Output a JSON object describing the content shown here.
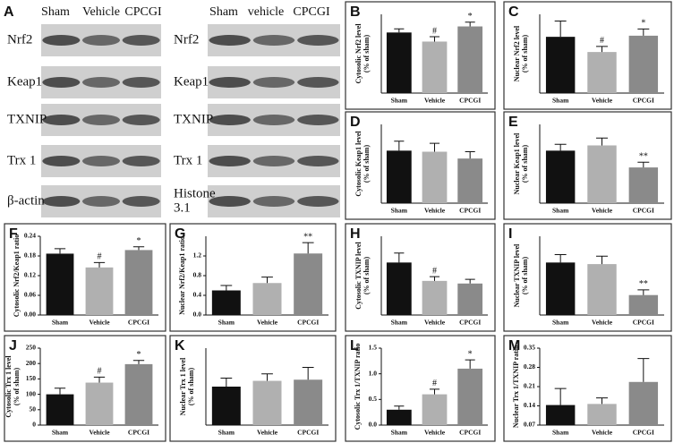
{
  "blots": [
    {
      "label": "A",
      "lanes": [
        "Sham",
        "Vehicle",
        "CPCGI"
      ],
      "rows": [
        [
          "Nrf2"
        ],
        [
          "Keap1"
        ],
        [
          "TXNIP"
        ],
        [
          "Trx 1"
        ],
        [
          "β-actin"
        ]
      ]
    },
    {
      "lanes": [
        "Sham",
        "vehicle",
        "CPCGI"
      ],
      "rows": [
        [
          "Nrf2"
        ],
        [
          "Keap1"
        ],
        [
          "TXNIP"
        ],
        [
          "Trx 1"
        ],
        [
          "Histone",
          "3.1"
        ]
      ]
    }
  ],
  "chart_data": [
    {
      "type": "bar",
      "label": "B",
      "ylabel": [
        "Cytosolic Nrf2 level",
        "(% of sham)"
      ],
      "categories": [
        "Sham",
        "Vehicle",
        "CPCGI"
      ],
      "values": [
        100,
        85,
        110
      ],
      "errors": [
        6,
        8,
        7
      ],
      "annotations": [
        null,
        "#",
        "*"
      ],
      "colors": [
        "#111111",
        "#b0b0b0",
        "#8a8a8a"
      ],
      "ylim": [
        0,
        130
      ]
    },
    {
      "type": "bar",
      "label": "C",
      "ylabel": [
        "Nuclear Nrf2 level",
        "(% of sham)"
      ],
      "categories": [
        "Sham",
        "Vehicle",
        "CPCGI"
      ],
      "values": [
        100,
        73,
        102
      ],
      "errors": [
        28,
        10,
        12
      ],
      "annotations": [
        null,
        "#",
        "*"
      ],
      "colors": [
        "#111111",
        "#b0b0b0",
        "#8a8a8a"
      ],
      "ylim": [
        0,
        140
      ]
    },
    {
      "type": "bar",
      "label": "D",
      "ylabel": [
        "Cytosolic Keap1 level",
        "(% of sham)"
      ],
      "categories": [
        "Sham",
        "Vehicle",
        "CPCGI"
      ],
      "values": [
        100,
        98,
        85
      ],
      "errors": [
        18,
        16,
        13
      ],
      "colors": [
        "#111111",
        "#b0b0b0",
        "#8a8a8a"
      ],
      "ylim": [
        0,
        150
      ]
    },
    {
      "type": "bar",
      "label": "E",
      "ylabel": [
        "Nuclear Keap1 level",
        "(% of sham)"
      ],
      "categories": [
        "Sham",
        "Vehicle",
        "CPCGI"
      ],
      "values": [
        100,
        110,
        68
      ],
      "errors": [
        12,
        14,
        10
      ],
      "annotations": [
        null,
        null,
        "**"
      ],
      "colors": [
        "#111111",
        "#b0b0b0",
        "#8a8a8a"
      ],
      "ylim": [
        0,
        150
      ]
    },
    {
      "type": "bar",
      "label": "F",
      "ylabel": [
        "Cytosolic Nrf2/Keap1 ratio"
      ],
      "categories": [
        "Sham",
        "Vehicle",
        "CPCGI"
      ],
      "values": [
        0.187,
        0.145,
        0.198
      ],
      "errors": [
        0.015,
        0.015,
        0.01
      ],
      "annotations": [
        null,
        "#",
        "*"
      ],
      "colors": [
        "#111111",
        "#b0b0b0",
        "#8a8a8a"
      ],
      "ylim": [
        0,
        0.24
      ],
      "yticks": [
        {
          "value": 0,
          "label": "0.00"
        },
        0.06,
        0.12,
        0.18,
        0.24
      ]
    },
    {
      "type": "bar",
      "label": "G",
      "ylabel": [
        "Nuclear Nrf2/Keap1 ratio"
      ],
      "categories": [
        "Sham",
        "Vehicle",
        "CPCGI"
      ],
      "values": [
        0.5,
        0.65,
        1.25
      ],
      "errors": [
        0.1,
        0.12,
        0.22
      ],
      "annotations": [
        null,
        null,
        "**"
      ],
      "colors": [
        "#111111",
        "#b0b0b0",
        "#8a8a8a"
      ],
      "ylim": [
        0,
        1.6
      ],
      "yticks": [
        {
          "value": 0,
          "label": "0.0"
        },
        0.4,
        0.8,
        1.2
      ]
    },
    {
      "type": "bar",
      "label": "H",
      "ylabel": [
        "Cytosolic TXNIP level",
        "(% of sham)"
      ],
      "categories": [
        "Sham",
        "Vehicle",
        "CPCGI"
      ],
      "values": [
        100,
        65,
        60
      ],
      "errors": [
        18,
        8,
        8
      ],
      "annotations": [
        null,
        "#",
        null
      ],
      "colors": [
        "#111111",
        "#b0b0b0",
        "#8a8a8a"
      ],
      "ylim": [
        0,
        150
      ]
    },
    {
      "type": "bar",
      "label": "I",
      "ylabel": [
        "Nuclear TXNIP level",
        "(% of sham)"
      ],
      "categories": [
        "Sham",
        "Vehicle",
        "CPCGI"
      ],
      "values": [
        100,
        97,
        38
      ],
      "errors": [
        15,
        15,
        10
      ],
      "annotations": [
        null,
        null,
        "**"
      ],
      "colors": [
        "#111111",
        "#b0b0b0",
        "#8a8a8a"
      ],
      "ylim": [
        0,
        150
      ]
    },
    {
      "type": "bar",
      "label": "J",
      "ylabel": [
        "Cytosolic Trx 1 level",
        "(% of sham)"
      ],
      "categories": [
        "Sham",
        "Vehicle",
        "CPCGI"
      ],
      "values": [
        100,
        138,
        198
      ],
      "errors": [
        20,
        18,
        12
      ],
      "annotations": [
        null,
        "#",
        "*"
      ],
      "colors": [
        "#111111",
        "#b0b0b0",
        "#8a8a8a"
      ],
      "ylim": [
        0,
        250
      ],
      "yticks": [
        0,
        50,
        100,
        150,
        200,
        250
      ]
    },
    {
      "type": "bar",
      "label": "K",
      "ylabel": [
        "Nuclear Trx 1 level",
        "(% of sham)"
      ],
      "categories": [
        "Sham",
        "Vehicle",
        "CPCGI"
      ],
      "values": [
        100,
        115,
        118
      ],
      "errors": [
        22,
        18,
        32
      ],
      "colors": [
        "#111111",
        "#b0b0b0",
        "#8a8a8a"
      ],
      "ylim": [
        0,
        200
      ]
    },
    {
      "type": "bar",
      "label": "L",
      "ylabel": [
        "Cytosolic Trx 1/TXNIP ratio"
      ],
      "categories": [
        "Sham",
        "Vehicle",
        "CPCGI"
      ],
      "values": [
        0.3,
        0.6,
        1.1
      ],
      "errors": [
        0.07,
        0.1,
        0.17
      ],
      "annotations": [
        null,
        "#",
        "*"
      ],
      "colors": [
        "#111111",
        "#b0b0b0",
        "#8a8a8a"
      ],
      "ylim": [
        0,
        1.5
      ],
      "yticks": [
        {
          "value": 0,
          "label": "0.0"
        },
        0.5,
        {
          "value": 1,
          "label": "1.0"
        },
        1.5
      ]
    },
    {
      "type": "bar",
      "label": "M",
      "ylabel": [
        "Nuclear Trx 1/TXNIP ratio"
      ],
      "categories": [
        "Sham",
        "Vehicle",
        "CPCGI"
      ],
      "values": [
        0.143,
        0.147,
        0.227
      ],
      "errors": [
        0.06,
        0.022,
        0.085
      ],
      "colors": [
        "#111111",
        "#b0b0b0",
        "#8a8a8a"
      ],
      "ylim": [
        0.07,
        0.35
      ],
      "yticks": [
        0.07,
        0.14,
        0.21,
        0.28,
        0.35
      ]
    }
  ]
}
